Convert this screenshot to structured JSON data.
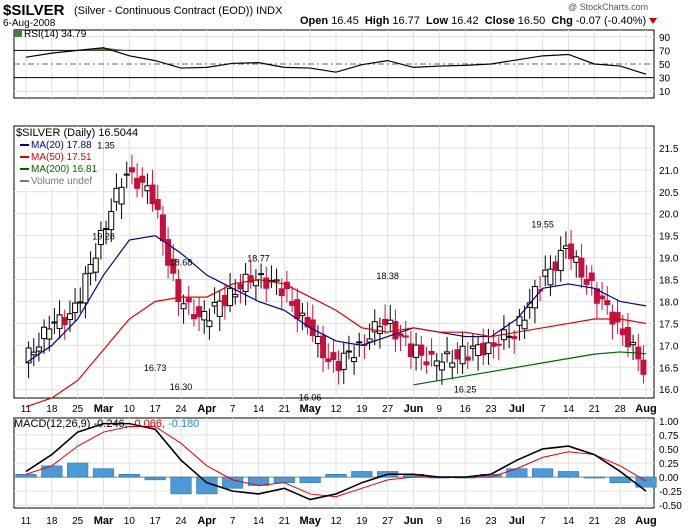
{
  "header": {
    "symbol": "$SILVER",
    "description": "(Silver - Continuous Contract (EOD))",
    "exchange": "INDX",
    "date": "6-Aug-2008",
    "watermark": "@ StockCharts.com",
    "open_label": "Open",
    "open": "16.45",
    "high_label": "High",
    "high": "16.77",
    "low_label": "Low",
    "low": "16.42",
    "close_label": "Close",
    "close": "16.50",
    "chg_label": "Chg",
    "chg": "-0.07 (-0.40%)"
  },
  "rsi_panel": {
    "legend": "RSI(14) 34.79",
    "levels": [
      90,
      70,
      50,
      30,
      10
    ],
    "overbought": 70,
    "oversold": 30
  },
  "price_panel": {
    "legend_title": "$SILVER (Daily) 16.50",
    "legend_items": [
      {
        "label": "MA(20) 17.88",
        "color": "#00008b"
      },
      {
        "label": "MA(50) 17.51",
        "color": "#e00000"
      },
      {
        "label": "MA(200) 16.81",
        "color": "#006400"
      },
      {
        "label": "Volume undef",
        "color": "#777777"
      }
    ],
    "corner_label": "44",
    "y_ticks": [
      "21.5",
      "21.0",
      "20.5",
      "20.0",
      "19.5",
      "19.0",
      "18.5",
      "18.0",
      "17.5",
      "17.0",
      "16.5",
      "16.0"
    ],
    "annotations": [
      "21.35",
      "19.28",
      "18.68",
      "16.73",
      "16.30",
      "18.77",
      "16.06",
      "18.38",
      "16.25",
      "19.55"
    ]
  },
  "macd_panel": {
    "legend_prefix": "MACD(12,26,9)",
    "legend_macd": "-0.246,",
    "legend_signal": "-0.066,",
    "legend_hist": "-0.180",
    "y_ticks": [
      "1.00",
      "0.75",
      "0.50",
      "0.25",
      "0.00",
      "-0.25",
      "-0.50"
    ]
  },
  "x_axis_labels": [
    "11",
    "18",
    "25",
    "Mar",
    "10",
    "17",
    "24",
    "Apr",
    "7",
    "14",
    "21",
    "May",
    "12",
    "19",
    "27",
    "Jun",
    "9",
    "16",
    "23",
    "Jul",
    "7",
    "14",
    "21",
    "28",
    "Aug"
  ],
  "chart_data": {
    "type": "line",
    "title": "$SILVER (Silver - Continuous Contract (EOD)) INDX",
    "x": [
      "11",
      "18",
      "25",
      "Mar",
      "10",
      "17",
      "24",
      "Apr",
      "7",
      "14",
      "21",
      "May",
      "12",
      "19",
      "27",
      "Jun",
      "9",
      "16",
      "23",
      "Jul",
      "7",
      "14",
      "21",
      "28",
      "Aug"
    ],
    "price_series": [
      {
        "name": "MA(20)",
        "color": "#00008b",
        "values": [
          16.6,
          17.0,
          17.6,
          18.6,
          19.4,
          19.5,
          19.1,
          18.6,
          18.3,
          18.0,
          17.8,
          17.4,
          17.1,
          17.0,
          17.2,
          17.4,
          17.3,
          17.2,
          17.2,
          17.6,
          18.3,
          18.4,
          18.3,
          18.0,
          17.9
        ]
      },
      {
        "name": "MA(50)",
        "color": "#e00000",
        "values": [
          15.6,
          15.8,
          16.2,
          16.9,
          17.6,
          18.0,
          18.1,
          18.1,
          18.4,
          18.5,
          18.4,
          18.1,
          17.8,
          17.4,
          17.3,
          17.4,
          17.3,
          17.3,
          17.2,
          17.3,
          17.4,
          17.5,
          17.6,
          17.6,
          17.5
        ]
      },
      {
        "name": "MA(200)",
        "color": "#006400",
        "values": [
          null,
          null,
          null,
          null,
          null,
          null,
          null,
          null,
          null,
          null,
          null,
          null,
          null,
          null,
          null,
          16.1,
          16.2,
          16.3,
          16.4,
          16.5,
          16.6,
          16.7,
          16.8,
          16.85,
          16.81
        ]
      },
      {
        "name": "Price",
        "color": "#000000",
        "values": [
          16.6,
          17.4,
          17.8,
          19.5,
          21.0,
          20.4,
          18.0,
          17.6,
          18.2,
          18.6,
          18.3,
          17.4,
          16.5,
          17.0,
          17.6,
          16.9,
          16.6,
          16.8,
          17.0,
          17.3,
          18.4,
          19.2,
          18.3,
          17.5,
          16.5
        ]
      }
    ],
    "price_ylim": [
      15.8,
      22.0
    ],
    "price_labels": [
      {
        "text": "21.35",
        "x_index": 3,
        "value": 21.35
      },
      {
        "text": "19.28",
        "x_index": 3,
        "value": 19.28
      },
      {
        "text": "18.68",
        "x_index": 6,
        "value": 18.68
      },
      {
        "text": "16.73",
        "x_index": 5,
        "value": 16.73
      },
      {
        "text": "16.30",
        "x_index": 6,
        "value": 16.3
      },
      {
        "text": "18.77",
        "x_index": 9,
        "value": 18.77
      },
      {
        "text": "16.06",
        "x_index": 11,
        "value": 16.06
      },
      {
        "text": "18.38",
        "x_index": 14,
        "value": 18.38
      },
      {
        "text": "16.25",
        "x_index": 17,
        "value": 16.25
      },
      {
        "text": "19.55",
        "x_index": 20,
        "value": 19.55
      }
    ],
    "rsi": {
      "name": "RSI(14)",
      "values": [
        60,
        66,
        70,
        74,
        62,
        55,
        44,
        45,
        51,
        52,
        45,
        44,
        38,
        49,
        55,
        45,
        47,
        48,
        50,
        56,
        62,
        64,
        50,
        47,
        35
      ],
      "ylim": [
        0,
        100
      ]
    },
    "macd": {
      "macd_line": [
        0.1,
        0.4,
        0.8,
        0.95,
        0.95,
        0.85,
        0.3,
        -0.1,
        -0.25,
        -0.3,
        -0.2,
        -0.4,
        -0.3,
        -0.1,
        0.05,
        0.05,
        0.0,
        0.0,
        0.05,
        0.3,
        0.5,
        0.55,
        0.4,
        0.1,
        -0.25
      ],
      "signal_line": [
        0.05,
        0.2,
        0.55,
        0.8,
        0.9,
        0.9,
        0.6,
        0.2,
        -0.05,
        -0.15,
        -0.1,
        -0.3,
        -0.35,
        -0.2,
        -0.05,
        0.0,
        0.0,
        0.0,
        0.0,
        0.15,
        0.35,
        0.45,
        0.4,
        0.2,
        -0.07
      ],
      "histogram": [
        0.05,
        0.2,
        0.25,
        0.15,
        0.05,
        -0.05,
        -0.3,
        -0.3,
        -0.2,
        -0.15,
        -0.1,
        -0.1,
        0.05,
        0.1,
        0.1,
        0.05,
        0.0,
        0.0,
        0.05,
        0.15,
        0.15,
        0.1,
        0.0,
        -0.1,
        -0.18
      ],
      "ylim": [
        -0.55,
        1.05
      ]
    },
    "grid": true,
    "legend_placement": "top-left"
  },
  "colors": {
    "up": "#000000",
    "down": "#c8103c",
    "rsi_fill": "#4a7a3c",
    "macd_hist": "#4a9ad8",
    "macd_line": "#000000",
    "signal_line": "#e00000"
  }
}
